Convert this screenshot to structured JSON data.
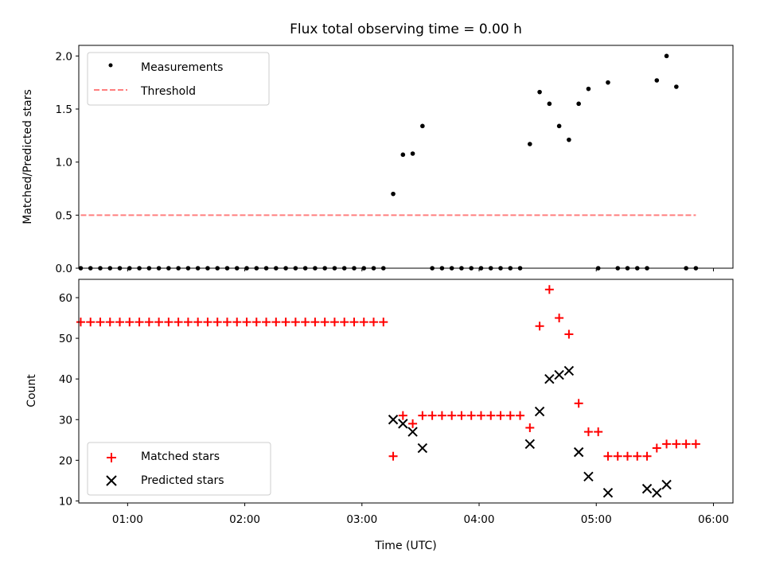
{
  "chart_data": [
    {
      "type": "scatter",
      "title": "Flux total observing time = 0.00 h",
      "xlabel": "",
      "ylabel": "Matched/Predicted stars",
      "xlim": [
        "00:35",
        "06:10"
      ],
      "ylim": [
        0,
        2.1
      ],
      "yticks": [
        "0.0",
        "0.5",
        "1.0",
        "1.5",
        "2.0"
      ],
      "legend_position": "top-left",
      "legend": [
        "Measurements",
        "Threshold"
      ],
      "colors": {
        "measurements": "#000000",
        "threshold": "#ff7f7f"
      },
      "threshold": {
        "x_start": "00:36",
        "x_end": "05:51",
        "y": 0.5
      },
      "series": [
        {
          "name": "Measurements",
          "x": [
            "00:36",
            "00:41",
            "00:46",
            "00:51",
            "00:56",
            "01:01",
            "01:06",
            "01:11",
            "01:16",
            "01:21",
            "01:26",
            "01:31",
            "01:36",
            "01:41",
            "01:46",
            "01:51",
            "01:56",
            "02:01",
            "02:06",
            "02:11",
            "02:16",
            "02:21",
            "02:26",
            "02:31",
            "02:36",
            "02:41",
            "02:46",
            "02:51",
            "02:56",
            "03:01",
            "03:06",
            "03:11",
            "03:16",
            "03:21",
            "03:26",
            "03:31",
            "03:36",
            "03:41",
            "03:46",
            "03:51",
            "03:56",
            "04:01",
            "04:06",
            "04:11",
            "04:16",
            "04:21",
            "04:26",
            "04:31",
            "04:36",
            "04:41",
            "04:46",
            "04:51",
            "04:56",
            "05:01",
            "05:06",
            "05:11",
            "05:16",
            "05:21",
            "05:26",
            "05:31",
            "05:36",
            "05:41",
            "05:46",
            "05:51"
          ],
          "y": [
            0,
            0,
            0,
            0,
            0,
            0,
            0,
            0,
            0,
            0,
            0,
            0,
            0,
            0,
            0,
            0,
            0,
            0,
            0,
            0,
            0,
            0,
            0,
            0,
            0,
            0,
            0,
            0,
            0,
            0,
            0,
            0,
            0.7,
            1.07,
            1.08,
            1.34,
            0,
            0,
            0,
            0,
            0,
            0,
            0,
            0,
            0,
            0,
            1.17,
            1.66,
            1.55,
            1.34,
            1.21,
            1.55,
            1.69,
            0,
            1.75,
            0,
            0,
            0,
            0,
            1.77,
            2.0,
            1.71,
            0,
            0
          ]
        }
      ]
    },
    {
      "type": "scatter",
      "title": "",
      "xlabel": "Time (UTC)",
      "ylabel": "Count",
      "xlim": [
        "00:35",
        "06:10"
      ],
      "xticks": [
        "01:00",
        "02:00",
        "03:00",
        "04:00",
        "05:00",
        "06:00"
      ],
      "ylim": [
        9.5,
        64.5
      ],
      "yticks": [
        "10",
        "20",
        "30",
        "40",
        "50",
        "60"
      ],
      "legend_position": "lower-left",
      "legend": [
        "Matched stars",
        "Predicted stars"
      ],
      "colors": {
        "matched": "#ff0000",
        "predicted": "#000000"
      },
      "series": [
        {
          "name": "Matched stars",
          "x": [
            "00:36",
            "00:41",
            "00:46",
            "00:51",
            "00:56",
            "01:01",
            "01:06",
            "01:11",
            "01:16",
            "01:21",
            "01:26",
            "01:31",
            "01:36",
            "01:41",
            "01:46",
            "01:51",
            "01:56",
            "02:01",
            "02:06",
            "02:11",
            "02:16",
            "02:21",
            "02:26",
            "02:31",
            "02:36",
            "02:41",
            "02:46",
            "02:51",
            "02:56",
            "03:01",
            "03:06",
            "03:11",
            "03:16",
            "03:21",
            "03:26",
            "03:31",
            "03:36",
            "03:41",
            "03:46",
            "03:51",
            "03:56",
            "04:01",
            "04:06",
            "04:11",
            "04:16",
            "04:21",
            "04:26",
            "04:31",
            "04:36",
            "04:41",
            "04:46",
            "04:51",
            "04:56",
            "05:01",
            "05:06",
            "05:11",
            "05:16",
            "05:21",
            "05:26",
            "05:31",
            "05:36",
            "05:41",
            "05:46",
            "05:51"
          ],
          "y": [
            54,
            54,
            54,
            54,
            54,
            54,
            54,
            54,
            54,
            54,
            54,
            54,
            54,
            54,
            54,
            54,
            54,
            54,
            54,
            54,
            54,
            54,
            54,
            54,
            54,
            54,
            54,
            54,
            54,
            54,
            54,
            54,
            21,
            31,
            29,
            31,
            31,
            31,
            31,
            31,
            31,
            31,
            31,
            31,
            31,
            31,
            28,
            53,
            62,
            55,
            51,
            34,
            27,
            27,
            21,
            21,
            21,
            21,
            21,
            23,
            24,
            24,
            24,
            24
          ]
        },
        {
          "name": "Predicted stars",
          "x": [
            "03:16",
            "03:21",
            "03:26",
            "03:31",
            "04:26",
            "04:31",
            "04:36",
            "04:41",
            "04:46",
            "04:51",
            "04:56",
            "05:06",
            "05:26",
            "05:31",
            "05:36"
          ],
          "y": [
            30,
            29,
            27,
            23,
            24,
            32,
            40,
            41,
            42,
            22,
            16,
            12,
            13,
            12,
            14
          ]
        }
      ]
    }
  ]
}
